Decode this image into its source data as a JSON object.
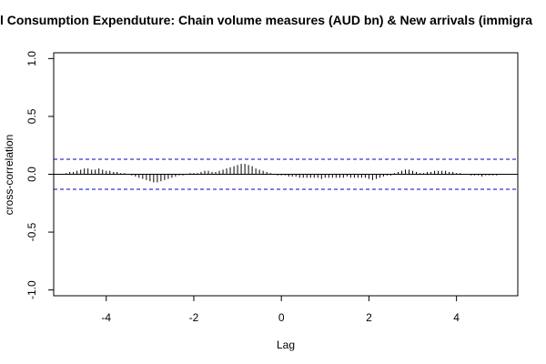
{
  "chart_data": {
    "type": "bar",
    "title": "l Consumption Expenduture: Chain volume measures (AUD bn) & New arrivals (immigra",
    "xlabel": "Lag",
    "ylabel": "cross-correlation",
    "xlim": [
      -5.2,
      5.4
    ],
    "ylim": [
      -1.05,
      1.05
    ],
    "x_ticks": [
      -4,
      -2,
      0,
      2,
      4
    ],
    "x_tick_labels": [
      "-4",
      "-2",
      "0",
      "2",
      "4"
    ],
    "y_ticks": [
      -1.0,
      -0.5,
      0.0,
      0.5,
      1.0
    ],
    "y_tick_labels": [
      "-1.0",
      "-0.5",
      "0.0",
      "0.5",
      "1.0"
    ],
    "confidence_band": 0.13,
    "colors": {
      "bars": "#000000",
      "band": "#0000cc",
      "zero_line": "#000000",
      "frame": "#000000"
    },
    "lags": [
      -4.917,
      -4.833,
      -4.75,
      -4.667,
      -4.583,
      -4.5,
      -4.417,
      -4.333,
      -4.25,
      -4.167,
      -4.083,
      -4.0,
      -3.917,
      -3.833,
      -3.75,
      -3.667,
      -3.583,
      -3.5,
      -3.417,
      -3.333,
      -3.25,
      -3.167,
      -3.083,
      -3.0,
      -2.917,
      -2.833,
      -2.75,
      -2.667,
      -2.583,
      -2.5,
      -2.417,
      -2.333,
      -2.25,
      -2.167,
      -2.083,
      -2.0,
      -1.917,
      -1.833,
      -1.75,
      -1.667,
      -1.583,
      -1.5,
      -1.417,
      -1.333,
      -1.25,
      -1.167,
      -1.083,
      -1.0,
      -0.917,
      -0.833,
      -0.75,
      -0.667,
      -0.583,
      -0.5,
      -0.417,
      -0.333,
      -0.25,
      -0.167,
      -0.083,
      0.0,
      0.083,
      0.167,
      0.25,
      0.333,
      0.417,
      0.5,
      0.583,
      0.667,
      0.75,
      0.833,
      0.917,
      1.0,
      1.083,
      1.167,
      1.25,
      1.333,
      1.417,
      1.5,
      1.583,
      1.667,
      1.75,
      1.833,
      1.917,
      2.0,
      2.083,
      2.167,
      2.25,
      2.333,
      2.417,
      2.5,
      2.583,
      2.667,
      2.75,
      2.833,
      2.917,
      3.0,
      3.083,
      3.167,
      3.25,
      3.333,
      3.417,
      3.5,
      3.583,
      3.667,
      3.75,
      3.833,
      3.917,
      4.0,
      4.083,
      4.167,
      4.25,
      4.333,
      4.417,
      4.5,
      4.583,
      4.667,
      4.75,
      4.833,
      4.917
    ],
    "values": [
      0.01,
      0.02,
      0.02,
      0.03,
      0.04,
      0.05,
      0.05,
      0.04,
      0.04,
      0.05,
      0.04,
      0.03,
      0.03,
      0.02,
      0.02,
      0.01,
      0.01,
      0.0,
      -0.01,
      -0.02,
      -0.03,
      -0.04,
      -0.05,
      -0.06,
      -0.07,
      -0.07,
      -0.06,
      -0.05,
      -0.04,
      -0.03,
      -0.02,
      -0.01,
      -0.01,
      0.0,
      0.01,
      0.01,
      0.01,
      0.02,
      0.03,
      0.03,
      0.02,
      0.02,
      0.03,
      0.04,
      0.05,
      0.06,
      0.07,
      0.08,
      0.09,
      0.09,
      0.08,
      0.07,
      0.05,
      0.04,
      0.03,
      0.02,
      0.01,
      0.0,
      -0.01,
      -0.01,
      -0.01,
      -0.02,
      -0.02,
      -0.02,
      -0.03,
      -0.03,
      -0.03,
      -0.03,
      -0.03,
      -0.03,
      -0.04,
      -0.03,
      -0.03,
      -0.03,
      -0.03,
      -0.03,
      -0.03,
      -0.02,
      -0.03,
      -0.03,
      -0.03,
      -0.03,
      -0.03,
      -0.04,
      -0.05,
      -0.04,
      -0.03,
      -0.02,
      -0.01,
      -0.01,
      0.01,
      0.02,
      0.03,
      0.04,
      0.04,
      0.03,
      0.02,
      0.01,
      0.01,
      0.02,
      0.02,
      0.03,
      0.03,
      0.03,
      0.03,
      0.02,
      0.02,
      0.01,
      0.01,
      0.0,
      0.0,
      -0.01,
      -0.01,
      -0.01,
      -0.02,
      -0.01,
      -0.01,
      -0.01,
      -0.01
    ]
  }
}
